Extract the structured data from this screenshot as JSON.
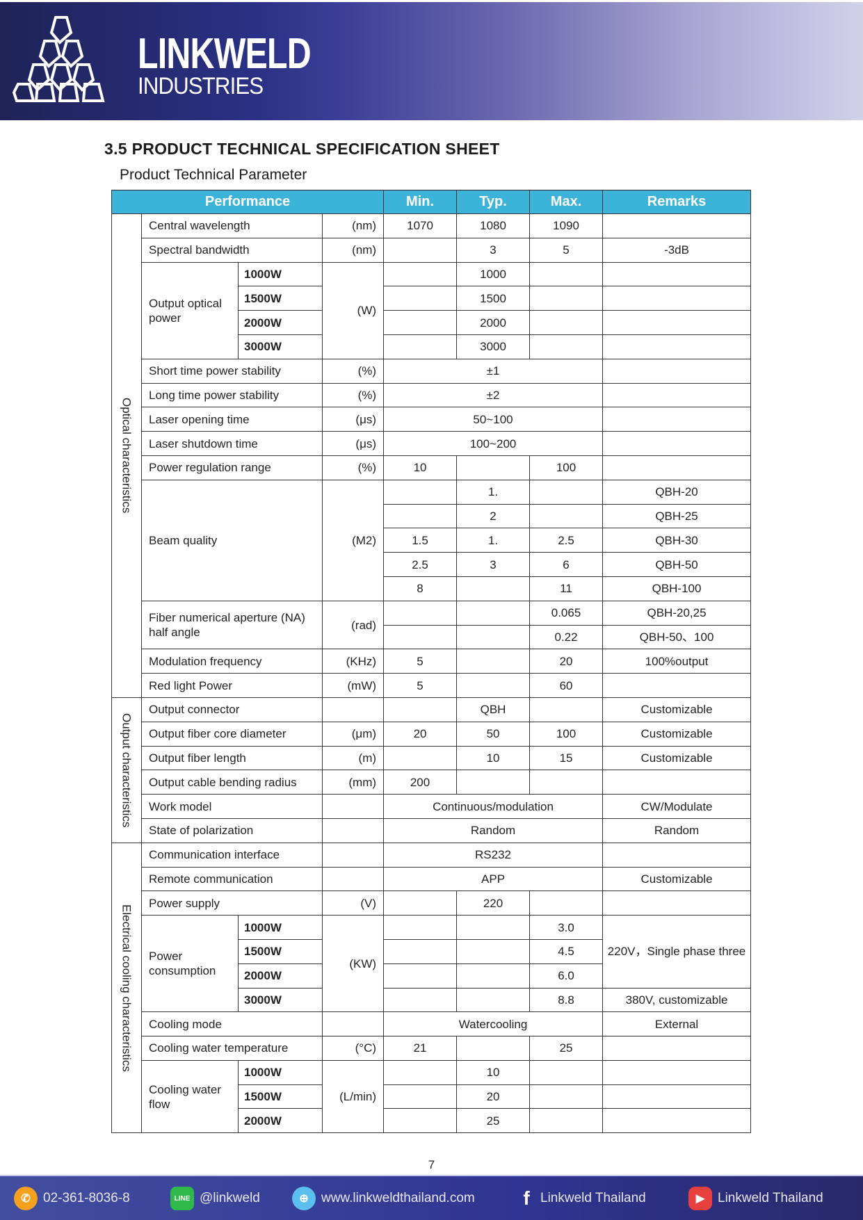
{
  "header": {
    "brand_line1": "LINKWELD",
    "brand_line2": "INDUSTRIES",
    "colors": {
      "band_dark": "#1f2358",
      "band_light": "#d2d1ea"
    }
  },
  "title": "3.5 PRODUCT TECHNICAL SPECIFICATION SHEET",
  "subtitle": "Product Technical Parameter",
  "table": {
    "header_color": "#3cb3d8",
    "headers": [
      "Performance",
      "Min.",
      "Typ.",
      "Max.",
      "Remarks"
    ],
    "rows": [
      [
        "Optical characteristics",
        "Central   wavelength",
        "(nm)",
        "1070",
        "1080",
        "1090",
        ""
      ],
      [
        "Spectral bandwidth",
        "(nm)",
        "",
        "3",
        "5",
        "-3dB"
      ],
      [
        "Output optical power",
        "1000W",
        "(W)",
        "",
        "1000",
        "",
        ""
      ],
      [
        "1500W",
        "",
        "1500",
        "",
        ""
      ],
      [
        "2000W",
        "",
        "2000",
        "",
        ""
      ],
      [
        "3000W",
        "",
        "3000",
        "",
        ""
      ],
      [
        "Short time power stability",
        "(%)",
        "±1",
        ""
      ],
      [
        "Long time power stability",
        "(%)",
        "±2",
        ""
      ],
      [
        "Laser opening time",
        "(μs)",
        "50~100",
        ""
      ],
      [
        "Laser shutdown time",
        "(μs)",
        "100~200",
        ""
      ],
      [
        "Power regulation range",
        "(%)",
        "10",
        "",
        "100",
        ""
      ],
      [
        "Beam quality",
        "(M2)",
        "",
        "1.",
        "",
        "QBH-20"
      ],
      [
        "",
        "2",
        "",
        "QBH-25"
      ],
      [
        "1.5",
        "1.",
        "2.5",
        "QBH-30"
      ],
      [
        "2.5",
        "3",
        "6",
        "QBH-50"
      ],
      [
        "8",
        "",
        "11",
        "QBH-100"
      ],
      [
        "Fiber numerical aperture (NA) half angle",
        "(rad)",
        "",
        "",
        "0.065",
        "QBH-20,25"
      ],
      [
        "",
        "",
        "0.22",
        "QBH-50、100"
      ],
      [
        "Modulation frequency",
        "(KHz)",
        "5",
        "",
        "20",
        "100%output"
      ],
      [
        "Red light Power",
        "(mW)",
        "5",
        "",
        "60",
        ""
      ],
      [
        "Output characteristics",
        "Output connector",
        "",
        "",
        "QBH",
        "",
        "Customizable"
      ],
      [
        "Output fiber core diameter",
        "(μm)",
        "20",
        "50",
        "100",
        "Customizable"
      ],
      [
        "Output fiber length",
        "(m)",
        "",
        "10",
        "15",
        "Customizable"
      ],
      [
        "Output cable bending radius",
        "(mm)",
        "200",
        "",
        "",
        ""
      ],
      [
        "Work model",
        "",
        "Continuous/modulation",
        "CW/Modulate"
      ],
      [
        "State of polarization",
        "",
        "Random",
        "Random"
      ],
      [
        "Electrical cooling characteristics",
        "Communication interface",
        "",
        "RS232",
        ""
      ],
      [
        "Remote communication",
        "",
        "APP",
        "Customizable"
      ],
      [
        "Power supply",
        "(V)",
        "",
        "220",
        "",
        ""
      ],
      [
        "Power consumption",
        "1000W",
        "(KW)",
        "",
        "",
        "3.0",
        "220V，Single phase three"
      ],
      [
        "1500W",
        "",
        "",
        "4.5"
      ],
      [
        "2000W",
        "",
        "",
        "6.0"
      ],
      [
        "3000W",
        "",
        "",
        "8.8",
        "380V, customizable"
      ],
      [
        "Cooling mode",
        "",
        "Watercooling",
        "External"
      ],
      [
        "Cooling water temperature",
        "(°C)",
        "21",
        "",
        "25",
        ""
      ],
      [
        "Cooling water flow",
        "1000W",
        "(L/min)",
        "",
        "10",
        "",
        ""
      ],
      [
        "1500W",
        "",
        "20",
        "",
        ""
      ],
      [
        "2000W",
        "",
        "25",
        "",
        ""
      ]
    ]
  },
  "page_number": "7",
  "footer": {
    "items": [
      {
        "icon": "phone-icon",
        "label": "02-361-8036-8",
        "color": "#f5a01f"
      },
      {
        "icon": "line-icon",
        "label": "@linkweld",
        "color": "#2fb94a"
      },
      {
        "icon": "globe-icon",
        "label": "www.linkweldthailand.com",
        "color": "#5cc0ee"
      },
      {
        "icon": "facebook-icon",
        "label": "Linkweld Thailand",
        "color": "#ffffff"
      },
      {
        "icon": "youtube-icon",
        "label": "Linkweld Thailand",
        "color": "#e8403f"
      }
    ]
  }
}
